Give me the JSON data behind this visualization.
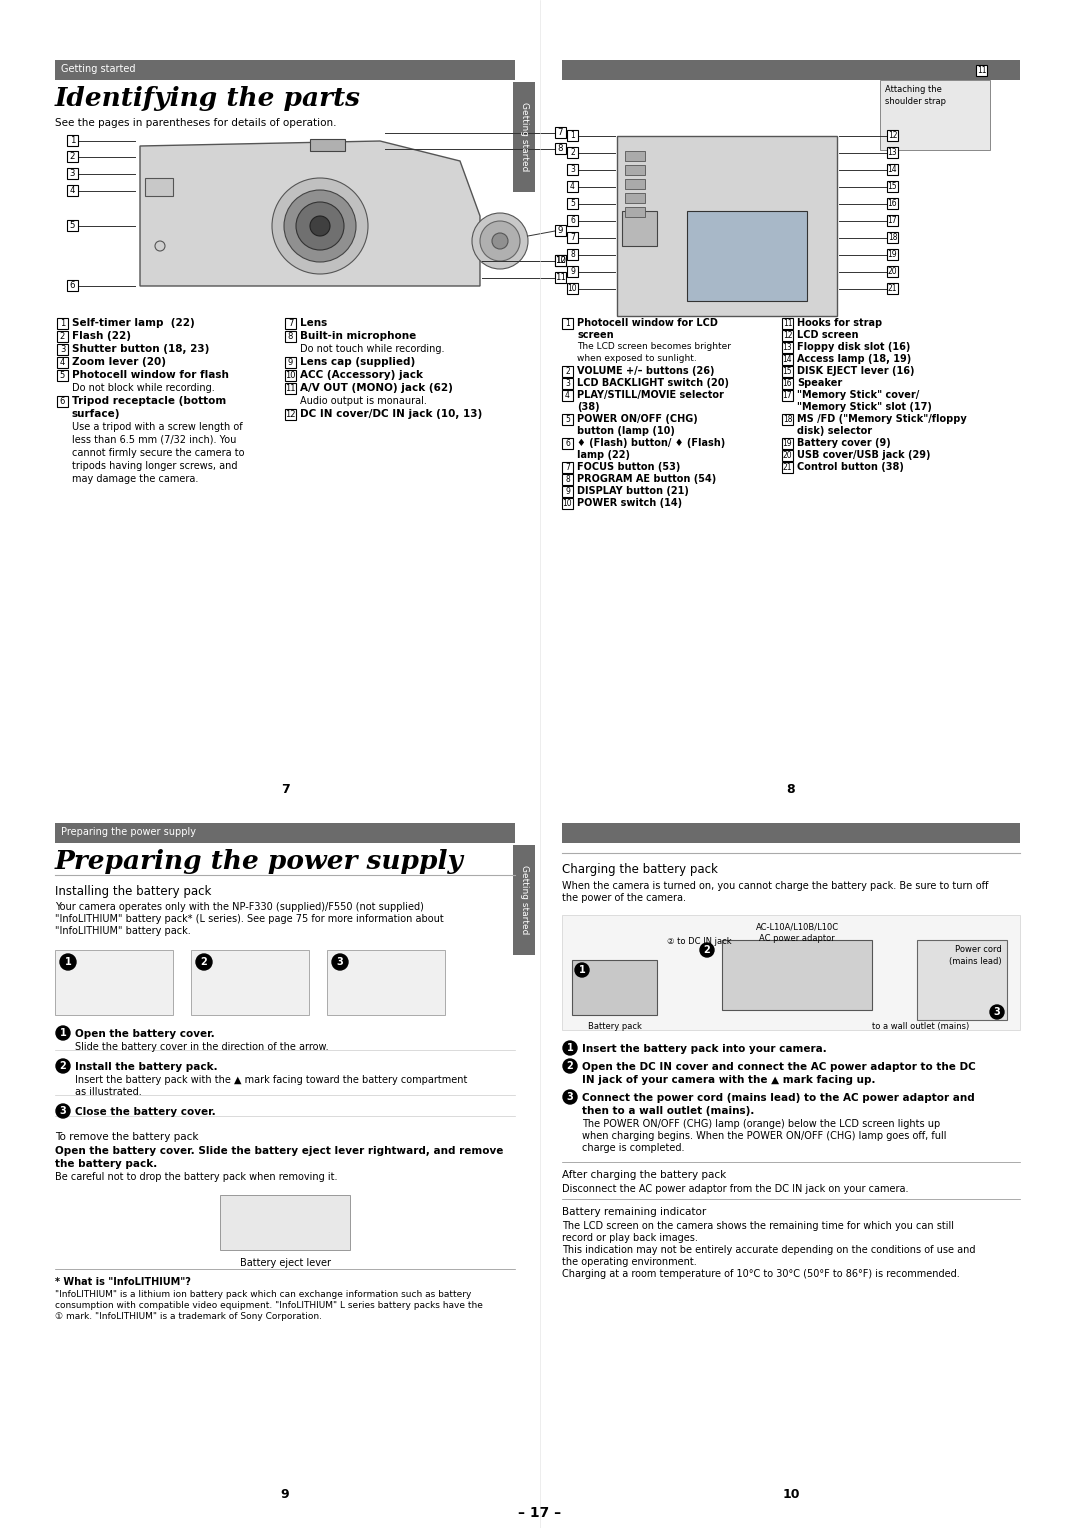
{
  "page_bg": "#ffffff",
  "header_bar_color": "#6b6b6b",
  "tab_color": "#6b6b6b",
  "page1_header": "Getting started",
  "page1_title": "Identifying the parts",
  "page1_subtitle": "See the pages in parentheses for details of operation.",
  "page1_number": "7",
  "page2_number": "8",
  "page3_header": "Preparing the power supply",
  "page3_number": "9",
  "page3_title": "Preparing the power supply",
  "page3_section1": "Installing the battery pack",
  "page3_intro": "Your camera operates only with the NP-F330 (supplied)/F550 (not supplied)\n\"InfoLITHIUM\" battery pack* (L series). See page 75 for more information about\n\"InfoLITHIUM\" battery pack.",
  "page3_step1_bold": "Open the battery cover.",
  "page3_step1_text": "Slide the battery cover in the direction of the arrow.",
  "page3_step2_bold": "Install the battery pack.",
  "page3_step2_text": "Insert the battery pack with the ▲ mark facing toward the battery compartment\nas illustrated.",
  "page3_step3_bold": "Close the battery cover.",
  "page3_remove_title": "To remove the battery pack",
  "page3_remove_text1": "Open the battery cover. Slide the battery eject lever rightward, and remove",
  "page3_remove_text2": "the battery pack.",
  "page3_remove_note": "Be careful not to drop the battery pack when removing it.",
  "page3_battery_label": "Battery eject lever",
  "page3_infolith_title": "* What is \"InfoLITHIUM\"?",
  "page3_infolith_text": "\"InfoLITHIUM\" is a lithium ion battery pack which can exchange information such as battery\nconsumption with compatible video equipment. \"InfoLITHIUM\" L series battery packs have the\n① mark. \"InfoLITHIUM\" is a trademark of Sony Corporation.",
  "page4_section": "Charging the battery pack",
  "page4_number": "10",
  "page4_intro": "When the camera is turned on, you cannot charge the battery pack. Be sure to turn off\nthe power of the camera.",
  "page4_step1_bold": "Insert the battery pack into your camera.",
  "page4_step2_bold": "Open the DC IN cover and connect the AC power adaptor to the DC\nIN jack of your camera with the ▲ mark facing up.",
  "page4_step3_bold": "Connect the power cord (mains lead) to the AC power adaptor and\nthen to a wall outlet (mains).",
  "page4_step3_text1": "The POWER ON/OFF (CHG) lamp (orange) below the LCD screen lights up",
  "page4_step3_text2": "when charging begins. When the POWER ON/OFF (CHG) lamp goes off, full",
  "page4_step3_text3": "charge is completed.",
  "page4_after_title": "After charging the battery pack",
  "page4_after_text": "Disconnect the AC power adaptor from the DC IN jack on your camera.",
  "page4_battery_title": "Battery remaining indicator",
  "page4_battery_text": "The LCD screen on the camera shows the remaining time for which you can still\nrecord or play back images.\nThis indication may not be entirely accurate depending on the conditions of use and\nthe operating environment.\nCharging at a room temperature of 10°C to 30°C (50°F to 86°F) is recommended.",
  "page_footer": "– 17 –",
  "left_parts": [
    [
      "1",
      "Self-timer lamp  (22)",
      true
    ],
    [
      "2",
      "Flash (22)",
      true
    ],
    [
      "3",
      "Shutter button (18, 23)",
      true
    ],
    [
      "4",
      "Zoom lever (20)",
      true
    ],
    [
      "5",
      "Photocell window for flash",
      true
    ],
    [
      "",
      "Do not block while recording.",
      false
    ],
    [
      "6",
      "Tripod receptacle (bottom",
      true
    ],
    [
      "",
      "surface)",
      true
    ],
    [
      "",
      "Use a tripod with a screw length of",
      false
    ],
    [
      "",
      "less than 6.5 mm (7/32 inch). You",
      false
    ],
    [
      "",
      "cannot firmly secure the camera to",
      false
    ],
    [
      "",
      "tripods having longer screws, and",
      false
    ],
    [
      "",
      "may damage the camera.",
      false
    ]
  ],
  "right_parts": [
    [
      "7",
      "Lens",
      true
    ],
    [
      "8",
      "Built-in microphone",
      true
    ],
    [
      "",
      "Do not touch while recording.",
      false
    ],
    [
      "9",
      "Lens cap (supplied)",
      true
    ],
    [
      "10",
      "ACC (Accessory) jack",
      true
    ],
    [
      "11",
      "A/V OUT (MONO) jack (62)",
      true
    ],
    [
      "",
      "Audio output is monaural.",
      false
    ],
    [
      "12",
      "DC IN cover/DC IN jack (10, 13)",
      true
    ]
  ],
  "right_parts2": [
    [
      "1",
      "Photocell window for LCD",
      true
    ],
    [
      "",
      "screen",
      true
    ],
    [
      "",
      "The LCD screen becomes brighter",
      false
    ],
    [
      "",
      "when exposed to sunlight.",
      false
    ],
    [
      "2",
      "VOLUME +/– buttons (26)",
      true
    ],
    [
      "3",
      "LCD BACKLIGHT switch (20)",
      true
    ],
    [
      "4",
      "PLAY/STILL/MOVIE selector",
      true
    ],
    [
      "",
      "(38)",
      true
    ],
    [
      "5",
      "POWER ON/OFF (CHG)",
      true
    ],
    [
      "",
      "button (lamp (10)",
      true
    ],
    [
      "6",
      "♦ (Flash) button/ ♦ (Flash)",
      true
    ],
    [
      "",
      "lamp (22)",
      true
    ],
    [
      "7",
      "FOCUS button (53)",
      true
    ],
    [
      "8",
      "PROGRAM AE button (54)",
      true
    ],
    [
      "9",
      "DISPLAY button (21)",
      true
    ],
    [
      "10",
      "POWER switch (14)",
      true
    ]
  ],
  "right_parts2b": [
    [
      "11",
      "Hooks for strap",
      true
    ],
    [
      "12",
      "LCD screen",
      true
    ],
    [
      "13",
      "Floppy disk slot (16)",
      true
    ],
    [
      "14",
      "Access lamp (18, 19)",
      true
    ],
    [
      "15",
      "DISK EJECT lever (16)",
      true
    ],
    [
      "16",
      "Speaker",
      true
    ],
    [
      "17",
      "\"Memory Stick\" cover/",
      true
    ],
    [
      "",
      "\"Memory Stick\" slot (17)",
      true
    ],
    [
      "18",
      "MS /FD (\"Memory Stick\"/floppy",
      true
    ],
    [
      "",
      "disk) selector",
      true
    ],
    [
      "19",
      "Battery cover (9)",
      true
    ],
    [
      "20",
      "USB cover/USB jack (29)",
      true
    ],
    [
      "21",
      "Control button (38)",
      true
    ]
  ]
}
